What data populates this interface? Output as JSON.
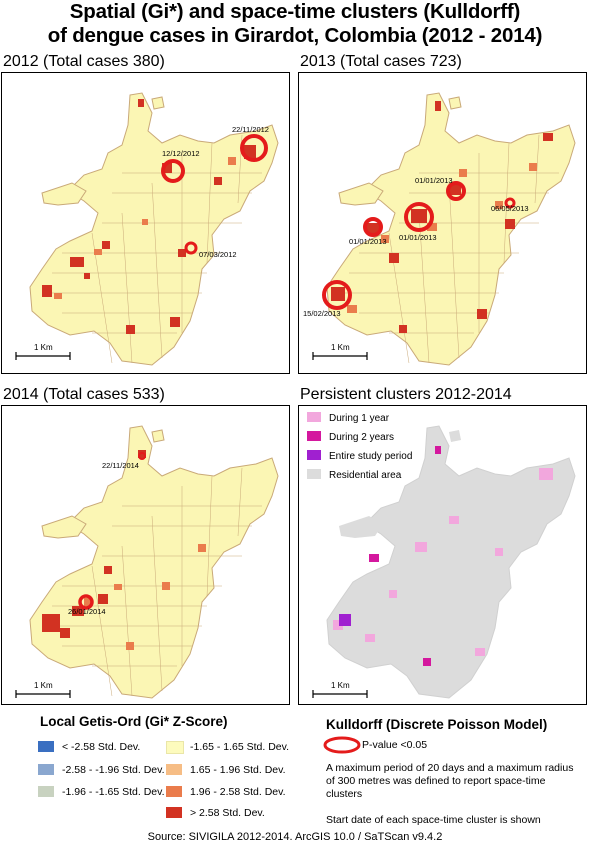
{
  "title_line1": "Spatial (Gi*) and space-time clusters (Kulldorff)",
  "title_line2": "of dengue cases in Girardot, Colombia (2012 - 2014)",
  "panels": {
    "p2012": {
      "title": "2012 (Total cases 380)",
      "scale": "1 Km",
      "clusters": [
        "22/11/2012",
        "12/12/2012",
        "07/03/2012"
      ]
    },
    "p2013": {
      "title": "2013 (Total cases 723)",
      "scale": "1 Km",
      "clusters": [
        "01/01/2013",
        "06/05/2013",
        "01/01/2013",
        "01/01/2013",
        "15/02/2013"
      ]
    },
    "p2014": {
      "title": "2014 (Total cases 533)",
      "scale": "1 Km",
      "clusters": [
        "22/11/2014",
        "26/01/2014"
      ]
    },
    "persist": {
      "title": "Persistent clusters 2012-2014",
      "scale": "1 Km",
      "legend": [
        "During 1 year",
        "During 2 years",
        "Entire study period",
        "Residential area"
      ],
      "colors": [
        "#f2a7dd",
        "#d4189e",
        "#a020d0",
        "#dcdcdc"
      ]
    }
  },
  "getis": {
    "title": "Local Getis-Ord (Gi* Z-Score)",
    "items_left": [
      "< -2.58 Std. Dev.",
      "-2.58 - -1.96 Std. Dev.",
      "-1.96 - -1.65 Std. Dev."
    ],
    "items_right": [
      "-1.65 - 1.65 Std. Dev.",
      "1.65 - 1.96 Std. Dev.",
      "1.96 - 2.58 Std. Dev.",
      "> 2.58 Std. Dev."
    ],
    "colors_left": [
      "#3a6fc1",
      "#8aa7cf",
      "#c8d2c0"
    ],
    "colors_right": [
      "#fdfbbd",
      "#f6bd85",
      "#ea7c4c",
      "#d23222"
    ]
  },
  "kulldorff": {
    "title": "Kulldorff (Discrete Poisson Model)",
    "pvalue": "P-value <0.05",
    "note1": "A maximum period of 20 days and a maximum radius of 300 metres was defined to report space-time clusters",
    "note2": "Start date of each space-time cluster is shown"
  },
  "source": "Source: SIVIGILA 2012-2014. ArcGIS 10.0 / SaTScan v9.4.2"
}
